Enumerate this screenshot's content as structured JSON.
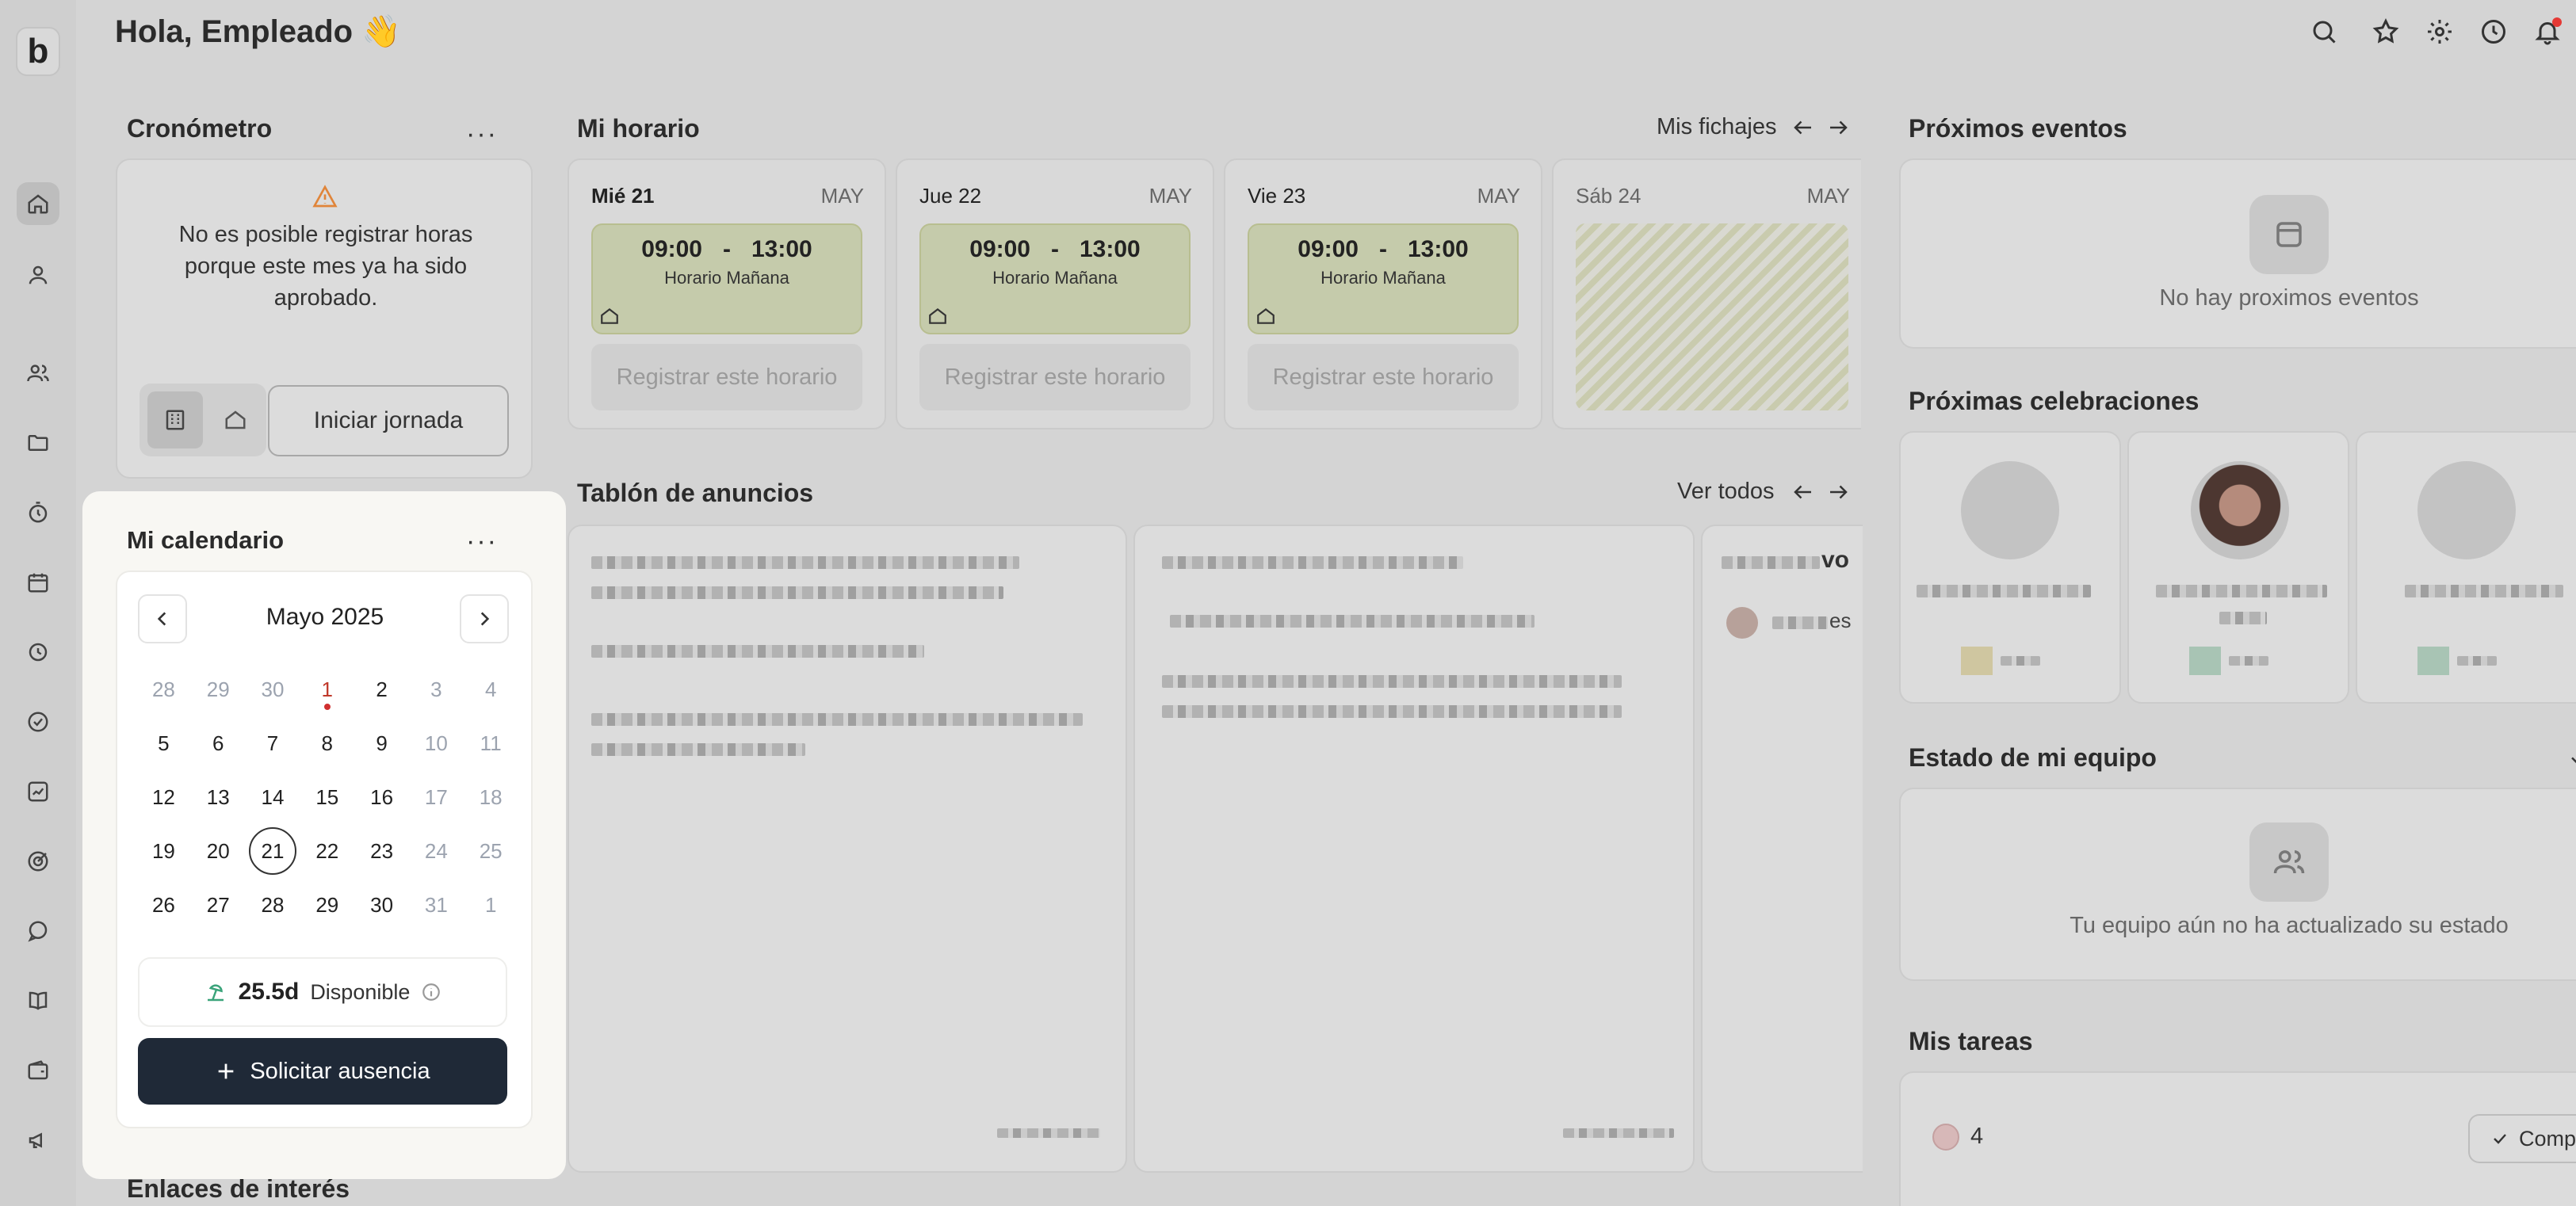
{
  "header": {
    "greeting": "Hola, Empleado 👋",
    "icons": [
      "search-icon",
      "star-icon",
      "gear-icon",
      "clock-icon",
      "bell-icon"
    ]
  },
  "nav": {
    "logo": "b",
    "items": [
      "home-icon",
      "user-icon",
      "users-icon",
      "folder-icon",
      "stopwatch-icon",
      "calendar-icon",
      "time-off-icon",
      "check-icon",
      "chart-icon",
      "target-icon",
      "chat-icon",
      "book-icon",
      "wallet-icon",
      "megaphone-icon"
    ]
  },
  "cronometro": {
    "title": "Cronómetro",
    "message": "No es posible registrar horas porque este mes ya ha sido aprobado.",
    "start_label": "Iniciar jornada"
  },
  "horario": {
    "title": "Mi horario",
    "link": "Mis fichajes",
    "days": [
      {
        "day": "Mié 21",
        "month": "MAY",
        "start": "09:00",
        "sep": "-",
        "end": "13:00",
        "shift": "Horario Mañana",
        "register": "Registrar este horario"
      },
      {
        "day": "Jue 22",
        "month": "MAY",
        "start": "09:00",
        "sep": "-",
        "end": "13:00",
        "shift": "Horario Mañana",
        "register": "Registrar este horario"
      },
      {
        "day": "Vie 23",
        "month": "MAY",
        "start": "09:00",
        "sep": "-",
        "end": "13:00",
        "shift": "Horario Mañana",
        "register": "Registrar este horario"
      },
      {
        "day": "Sáb 24",
        "month": "MAY"
      }
    ]
  },
  "anuncios": {
    "title": "Tablón de anuncios",
    "link": "Ver todos",
    "fragment_1": "vo",
    "fragment_2": "es"
  },
  "calendario": {
    "title": "Mi calendario",
    "month_label": "Mayo 2025",
    "weeks": [
      [
        "28",
        "29",
        "30",
        "1",
        "2",
        "3",
        "4"
      ],
      [
        "5",
        "6",
        "7",
        "8",
        "9",
        "10",
        "11"
      ],
      [
        "12",
        "13",
        "14",
        "15",
        "16",
        "17",
        "18"
      ],
      [
        "19",
        "20",
        "21",
        "22",
        "23",
        "24",
        "25"
      ],
      [
        "26",
        "27",
        "28",
        "29",
        "30",
        "31",
        "1"
      ]
    ],
    "available_value": "25.5d",
    "available_label": "Disponible",
    "request_label": "Solicitar ausencia"
  },
  "enlaces": {
    "title": "Enlaces de interés"
  },
  "eventos": {
    "title": "Próximos eventos",
    "empty": "No hay proximos eventos"
  },
  "celebraciones": {
    "title": "Próximas celebraciones"
  },
  "equipo": {
    "title": "Estado de mi equipo",
    "empty": "Tu equipo aún no ha actualizado su estado"
  },
  "tareas": {
    "title": "Mis tareas",
    "count": "4",
    "complete_label": "Comp"
  }
}
